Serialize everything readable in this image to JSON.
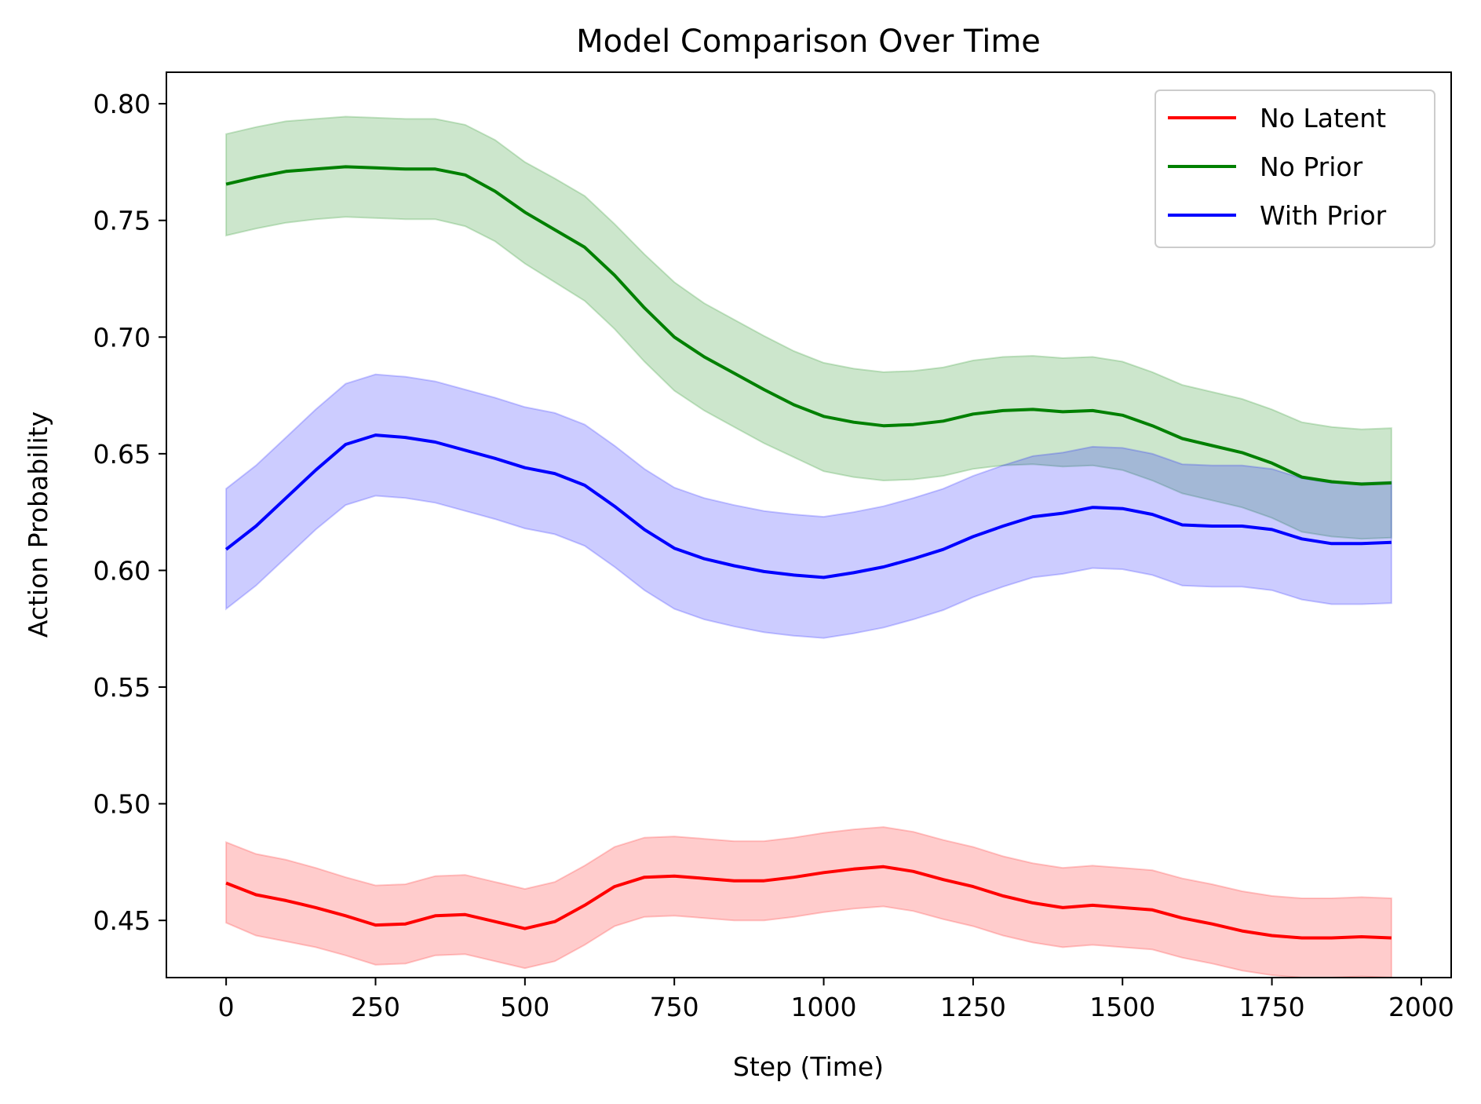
{
  "chart_data": {
    "type": "line",
    "title": "Model Comparison Over Time",
    "xlabel": "Step (Time)",
    "ylabel": "Action Probability",
    "xlim": [
      -100,
      2050
    ],
    "ylim": [
      0.4255,
      0.8135
    ],
    "xticks": [
      0,
      250,
      500,
      750,
      1000,
      1250,
      1500,
      1750,
      2000
    ],
    "xtick_labels": [
      "0",
      "250",
      "500",
      "750",
      "1000",
      "1250",
      "1500",
      "1750",
      "2000"
    ],
    "yticks": [
      0.45,
      0.5,
      0.55,
      0.6,
      0.65,
      0.7,
      0.75,
      0.8
    ],
    "ytick_labels": [
      "0.45",
      "0.50",
      "0.55",
      "0.60",
      "0.65",
      "0.70",
      "0.75",
      "0.80"
    ],
    "grid": false,
    "legend_position": "top-right",
    "x": [
      0,
      50,
      100,
      150,
      200,
      250,
      300,
      350,
      400,
      450,
      500,
      550,
      600,
      650,
      700,
      750,
      800,
      850,
      900,
      950,
      1000,
      1050,
      1100,
      1150,
      1200,
      1250,
      1300,
      1350,
      1400,
      1450,
      1500,
      1550,
      1600,
      1650,
      1700,
      1750,
      1800,
      1850,
      1900,
      1950
    ],
    "series": [
      {
        "name": "No Latent",
        "color": "#ff0000",
        "band_color": "#ff0000",
        "values": [
          0.466,
          0.461,
          0.4585,
          0.4555,
          0.452,
          0.448,
          0.4485,
          0.452,
          0.4525,
          0.4495,
          0.4465,
          0.4495,
          0.4565,
          0.4645,
          0.4685,
          0.469,
          0.468,
          0.467,
          0.467,
          0.4685,
          0.4705,
          0.472,
          0.473,
          0.471,
          0.4675,
          0.4645,
          0.4605,
          0.4575,
          0.4555,
          0.4565,
          0.4555,
          0.4545,
          0.451,
          0.4485,
          0.4455,
          0.4435,
          0.4425,
          0.4425,
          0.443,
          0.4425
        ],
        "lower": [
          0.449,
          0.4435,
          0.441,
          0.4385,
          0.435,
          0.431,
          0.4315,
          0.435,
          0.4355,
          0.4325,
          0.4295,
          0.4325,
          0.4395,
          0.4475,
          0.4515,
          0.452,
          0.451,
          0.45,
          0.45,
          0.4515,
          0.4535,
          0.455,
          0.456,
          0.454,
          0.4505,
          0.4475,
          0.4435,
          0.4405,
          0.4385,
          0.4395,
          0.4385,
          0.4375,
          0.434,
          0.4315,
          0.4285,
          0.4265,
          0.4255,
          0.4255,
          0.426,
          0.4255
        ],
        "upper": [
          0.4835,
          0.4785,
          0.476,
          0.4725,
          0.4685,
          0.465,
          0.4655,
          0.469,
          0.4695,
          0.4665,
          0.4635,
          0.4665,
          0.4735,
          0.4815,
          0.4855,
          0.486,
          0.485,
          0.484,
          0.484,
          0.4855,
          0.4875,
          0.489,
          0.49,
          0.488,
          0.4845,
          0.4815,
          0.4775,
          0.4745,
          0.4725,
          0.4735,
          0.4725,
          0.4715,
          0.468,
          0.4655,
          0.4625,
          0.4605,
          0.4595,
          0.4595,
          0.46,
          0.4595
        ]
      },
      {
        "name": "No Prior",
        "color": "#008000",
        "band_color": "#008000",
        "values": [
          0.7655,
          0.7685,
          0.771,
          0.772,
          0.773,
          0.7725,
          0.772,
          0.772,
          0.7695,
          0.7625,
          0.7535,
          0.746,
          0.7385,
          0.7265,
          0.7125,
          0.7,
          0.6915,
          0.6845,
          0.6775,
          0.671,
          0.666,
          0.6635,
          0.662,
          0.6625,
          0.664,
          0.667,
          0.6685,
          0.669,
          0.668,
          0.6685,
          0.6665,
          0.662,
          0.6565,
          0.6535,
          0.6505,
          0.646,
          0.64,
          0.638,
          0.637,
          0.6375
        ],
        "lower": [
          0.7435,
          0.7465,
          0.749,
          0.7505,
          0.7515,
          0.751,
          0.7505,
          0.7505,
          0.7475,
          0.741,
          0.7315,
          0.7235,
          0.7155,
          0.7035,
          0.6895,
          0.677,
          0.6685,
          0.6615,
          0.6545,
          0.6485,
          0.6425,
          0.64,
          0.6385,
          0.639,
          0.6405,
          0.6435,
          0.645,
          0.6455,
          0.6445,
          0.645,
          0.643,
          0.6385,
          0.633,
          0.63,
          0.627,
          0.6225,
          0.6165,
          0.6145,
          0.6135,
          0.614
        ],
        "upper": [
          0.787,
          0.79,
          0.7925,
          0.7935,
          0.7945,
          0.794,
          0.7935,
          0.7935,
          0.791,
          0.7845,
          0.775,
          0.768,
          0.7605,
          0.7485,
          0.7355,
          0.7235,
          0.7145,
          0.7075,
          0.7005,
          0.694,
          0.689,
          0.6865,
          0.685,
          0.6855,
          0.687,
          0.69,
          0.6915,
          0.692,
          0.691,
          0.6915,
          0.6895,
          0.685,
          0.6795,
          0.6765,
          0.6735,
          0.669,
          0.6635,
          0.6615,
          0.6605,
          0.661
        ]
      },
      {
        "name": "With Prior",
        "color": "#0000ff",
        "band_color": "#0000ff",
        "values": [
          0.609,
          0.619,
          0.631,
          0.643,
          0.654,
          0.658,
          0.657,
          0.655,
          0.6515,
          0.648,
          0.644,
          0.6415,
          0.6365,
          0.6275,
          0.6175,
          0.6095,
          0.605,
          0.602,
          0.5995,
          0.598,
          0.597,
          0.599,
          0.6015,
          0.605,
          0.609,
          0.6145,
          0.619,
          0.623,
          0.6245,
          0.627,
          0.6265,
          0.624,
          0.6195,
          0.619,
          0.619,
          0.6175,
          0.6135,
          0.6115,
          0.6115,
          0.612
        ],
        "lower": [
          0.5835,
          0.5935,
          0.6055,
          0.6175,
          0.628,
          0.632,
          0.631,
          0.629,
          0.6255,
          0.622,
          0.618,
          0.6155,
          0.6105,
          0.6015,
          0.5915,
          0.5835,
          0.579,
          0.576,
          0.5735,
          0.572,
          0.571,
          0.573,
          0.5755,
          0.579,
          0.583,
          0.5885,
          0.593,
          0.597,
          0.5985,
          0.601,
          0.6005,
          0.598,
          0.5935,
          0.593,
          0.593,
          0.5915,
          0.5875,
          0.5855,
          0.5855,
          0.586
        ],
        "upper": [
          0.635,
          0.645,
          0.657,
          0.669,
          0.68,
          0.684,
          0.683,
          0.681,
          0.6775,
          0.674,
          0.67,
          0.6675,
          0.6625,
          0.6535,
          0.6435,
          0.6355,
          0.631,
          0.628,
          0.6255,
          0.624,
          0.623,
          0.625,
          0.6275,
          0.631,
          0.635,
          0.6405,
          0.645,
          0.649,
          0.6505,
          0.653,
          0.6525,
          0.65,
          0.6455,
          0.645,
          0.645,
          0.6435,
          0.6395,
          0.6375,
          0.6375,
          0.638
        ]
      }
    ]
  }
}
